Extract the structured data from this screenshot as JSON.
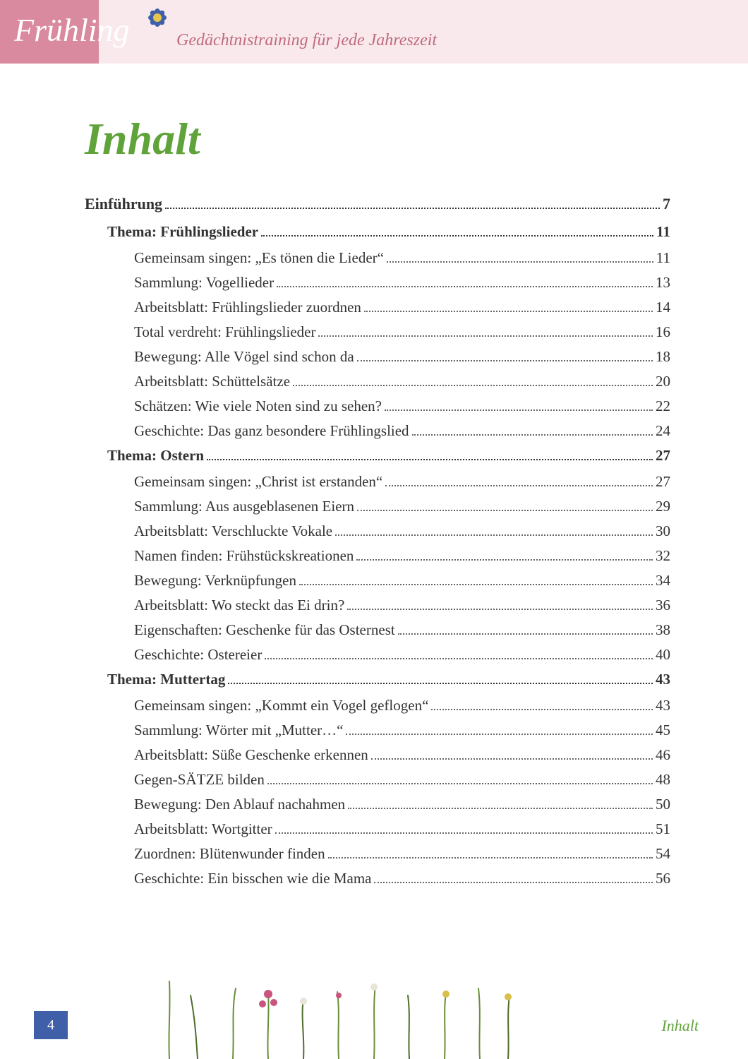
{
  "header": {
    "season": "Frühling",
    "subtitle": "Gedächtnistraining für jede Jahreszeit",
    "band_dark": "#d98a9e",
    "band_light": "#f9e9ec",
    "subtitle_color": "#c06a7e",
    "flower_petal": "#3f5fa8",
    "flower_center": "#e6c54a"
  },
  "title": "Inhalt",
  "title_color": "#5fa33a",
  "toc": [
    {
      "label": "Einführung",
      "page": "7",
      "level": 0
    },
    {
      "label": "Thema: Frühlingslieder",
      "page": "11",
      "level": 1
    },
    {
      "label": "Gemeinsam singen: „Es tönen die Lieder“",
      "page": "11",
      "level": 2
    },
    {
      "label": "Sammlung: Vogellieder",
      "page": "13",
      "level": 2
    },
    {
      "label": "Arbeitsblatt: Frühlingslieder zuordnen",
      "page": "14",
      "level": 2
    },
    {
      "label": "Total verdreht: Frühlingslieder",
      "page": "16",
      "level": 2
    },
    {
      "label": "Bewegung: Alle Vögel sind schon da",
      "page": "18",
      "level": 2
    },
    {
      "label": "Arbeitsblatt: Schüttelsätze",
      "page": "20",
      "level": 2
    },
    {
      "label": "Schätzen: Wie viele Noten sind zu sehen?",
      "page": "22",
      "level": 2
    },
    {
      "label": "Geschichte: Das ganz besondere Frühlingslied",
      "page": "24",
      "level": 2
    },
    {
      "label": "Thema: Ostern",
      "page": "27",
      "level": 1
    },
    {
      "label": "Gemeinsam singen: „Christ ist erstanden“",
      "page": "27",
      "level": 2
    },
    {
      "label": "Sammlung: Aus ausgeblasenen Eiern",
      "page": "29",
      "level": 2
    },
    {
      "label": "Arbeitsblatt: Verschluckte Vokale",
      "page": "30",
      "level": 2
    },
    {
      "label": "Namen finden: Frühstückskreationen",
      "page": "32",
      "level": 2
    },
    {
      "label": "Bewegung: Verknüpfungen",
      "page": "34",
      "level": 2
    },
    {
      "label": "Arbeitsblatt: Wo steckt das Ei drin?",
      "page": "36",
      "level": 2
    },
    {
      "label": "Eigenschaften: Geschenke für das Osternest",
      "page": "38",
      "level": 2
    },
    {
      "label": "Geschichte: Ostereier",
      "page": "40",
      "level": 2
    },
    {
      "label": "Thema: Muttertag",
      "page": "43",
      "level": 1
    },
    {
      "label": "Gemeinsam singen: „Kommt ein Vogel geflogen“",
      "page": "43",
      "level": 2
    },
    {
      "label": "Sammlung: Wörter mit „Mutter…“",
      "page": "45",
      "level": 2
    },
    {
      "label": "Arbeitsblatt:  Süße Geschenke erkennen",
      "page": "46",
      "level": 2
    },
    {
      "label": "Gegen-SÄTZE bilden",
      "page": "48",
      "level": 2
    },
    {
      "label": "Bewegung: Den Ablauf nachahmen",
      "page": "50",
      "level": 2
    },
    {
      "label": "Arbeitsblatt: Wortgitter",
      "page": "51",
      "level": 2
    },
    {
      "label": "Zuordnen: Blütenwunder finden",
      "page": "54",
      "level": 2
    },
    {
      "label": "Geschichte: Ein bisschen wie die Mama",
      "page": "56",
      "level": 2
    }
  ],
  "footer": {
    "page_number": "4",
    "label": "Inhalt",
    "page_box_bg": "#3f5fa8",
    "label_color": "#5fa33a"
  },
  "grass": {
    "stem": "#6a8f3a",
    "stem_dark": "#4e6e2a",
    "flower_pink": "#c9547e",
    "flower_yellow": "#d8c04a",
    "flower_white": "#e8e4d8"
  }
}
